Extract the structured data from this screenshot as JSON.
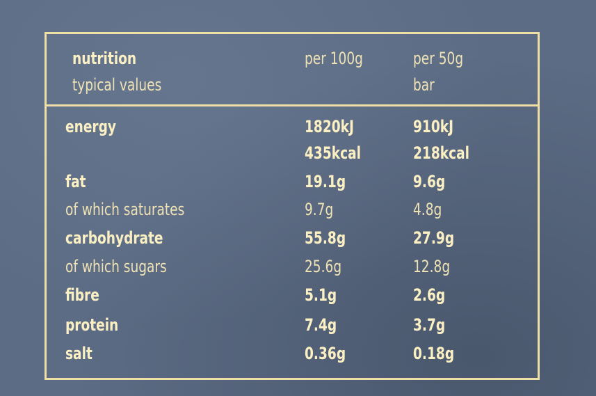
{
  "header": {
    "title": "nutrition",
    "subtitle": "typical values",
    "col1": "per 100g",
    "col2_line1": "per 50g",
    "col2_line2": "bar"
  },
  "rows": [
    {
      "name": "energy",
      "per100": "1820kJ",
      "per50": "910kJ"
    },
    {
      "name": "",
      "per100": "435kcal",
      "per50": "218kcal"
    },
    {
      "name": "fat",
      "per100": "19.1g",
      "per50": "9.6g"
    },
    {
      "name": "of which saturates",
      "per100": "9.7g",
      "per50": "4.8g"
    },
    {
      "name": "carbohydrate",
      "per100": "55.8g",
      "per50": "27.9g"
    },
    {
      "name": "of which sugars",
      "per100": "25.6g",
      "per50": "12.8g"
    },
    {
      "name": "fibre",
      "per100": "5.1g",
      "per50": "2.6g"
    },
    {
      "name": "protein",
      "per100": "7.4g",
      "per50": "3.7g"
    },
    {
      "name": "salt",
      "per100": "0.36g",
      "per50": "0.18g"
    }
  ],
  "colors": {
    "background": "#5c6c84",
    "ink": "#f6eaba"
  }
}
